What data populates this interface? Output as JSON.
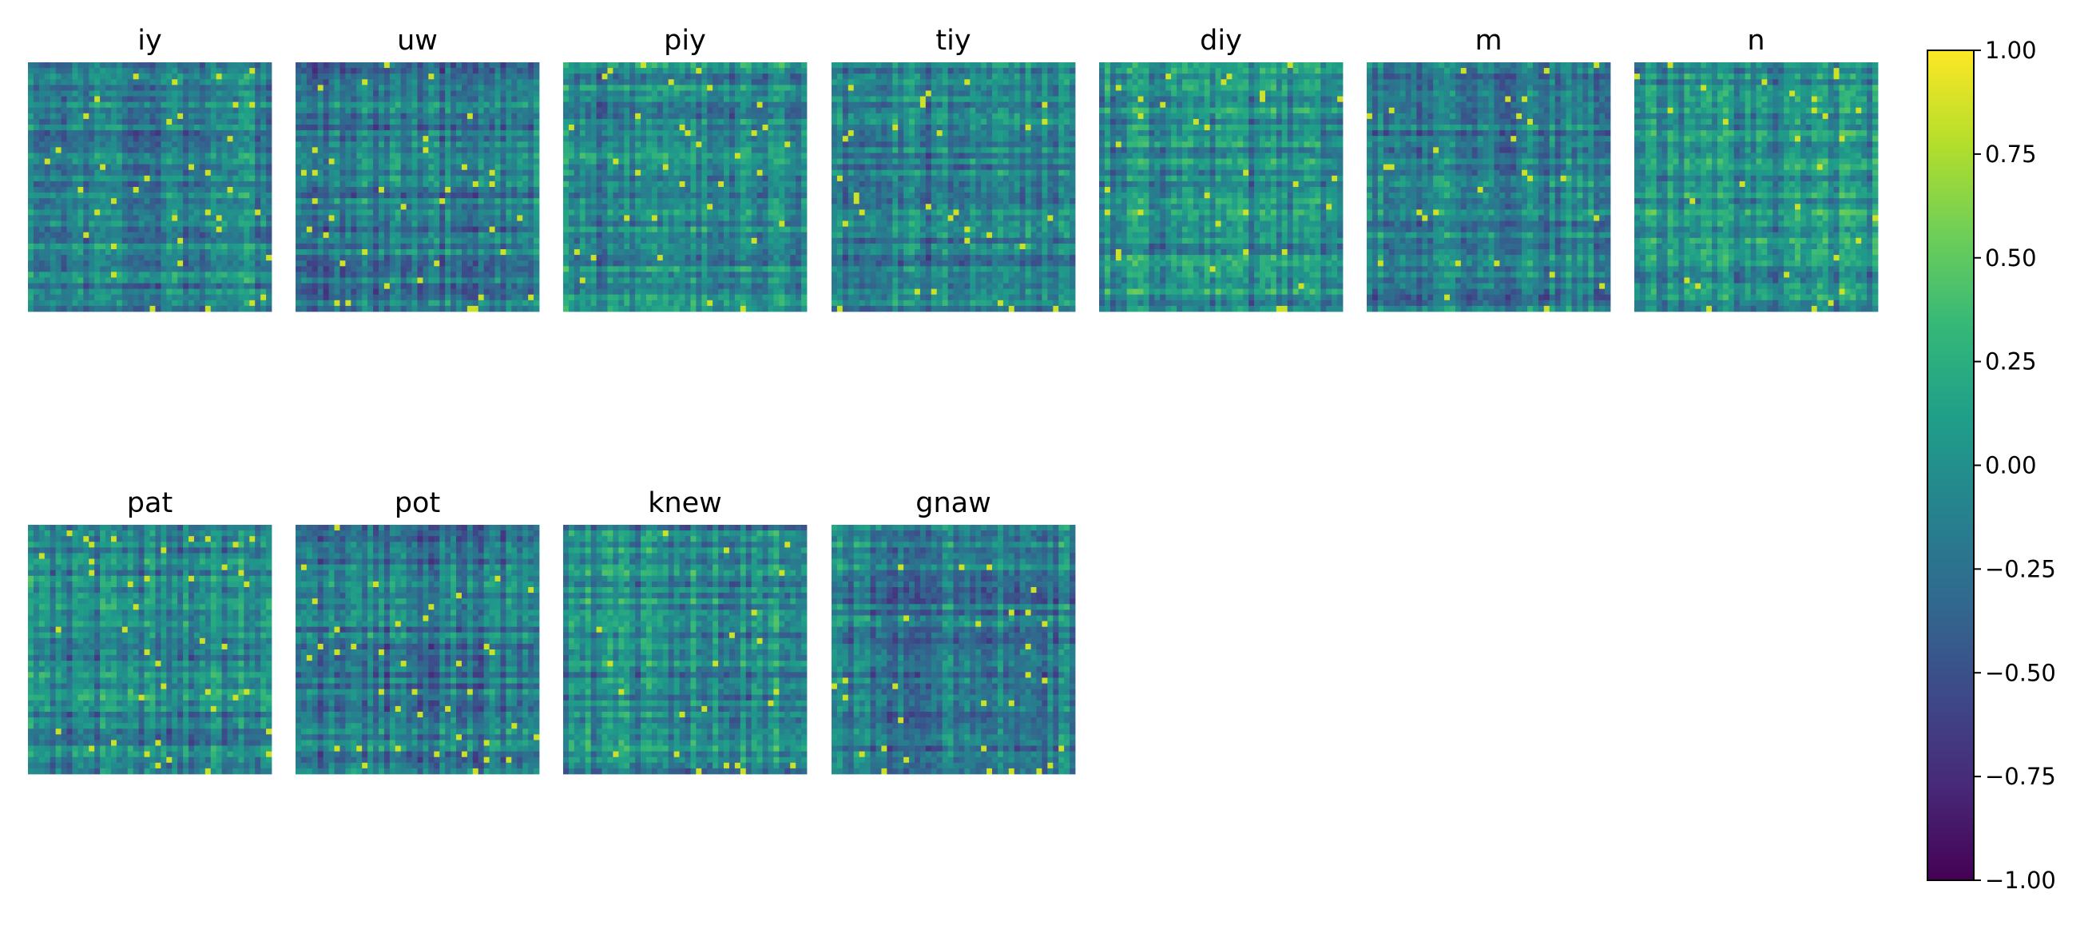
{
  "chart_data": {
    "type": "heatmap",
    "description_kind": "grid of correlation-style matrices, one per label",
    "panels": [
      {
        "title": "iy"
      },
      {
        "title": "uw"
      },
      {
        "title": "piy"
      },
      {
        "title": "tiy"
      },
      {
        "title": "diy"
      },
      {
        "title": "m"
      },
      {
        "title": "n"
      },
      {
        "title": "pat"
      },
      {
        "title": "pot"
      },
      {
        "title": "knew"
      },
      {
        "title": "gnaw"
      }
    ],
    "colorbar": {
      "colormap": "viridis",
      "range": [
        -1.0,
        1.0
      ],
      "ticks": [
        1.0,
        0.75,
        0.5,
        0.25,
        0.0,
        -0.25,
        -0.5,
        -0.75,
        -1.0
      ],
      "tick_labels": [
        "1.00",
        "0.75",
        "0.50",
        "0.25",
        "0.00",
        "−0.25",
        "−0.50",
        "−0.75",
        "−1.00"
      ]
    },
    "grid": false,
    "axes_visible": false
  },
  "colors": {
    "viridis_stops": [
      "#440154",
      "#482878",
      "#3e4989",
      "#31688e",
      "#26828e",
      "#1f9e89",
      "#35b779",
      "#6ece58",
      "#b5de2b",
      "#fde725"
    ]
  }
}
